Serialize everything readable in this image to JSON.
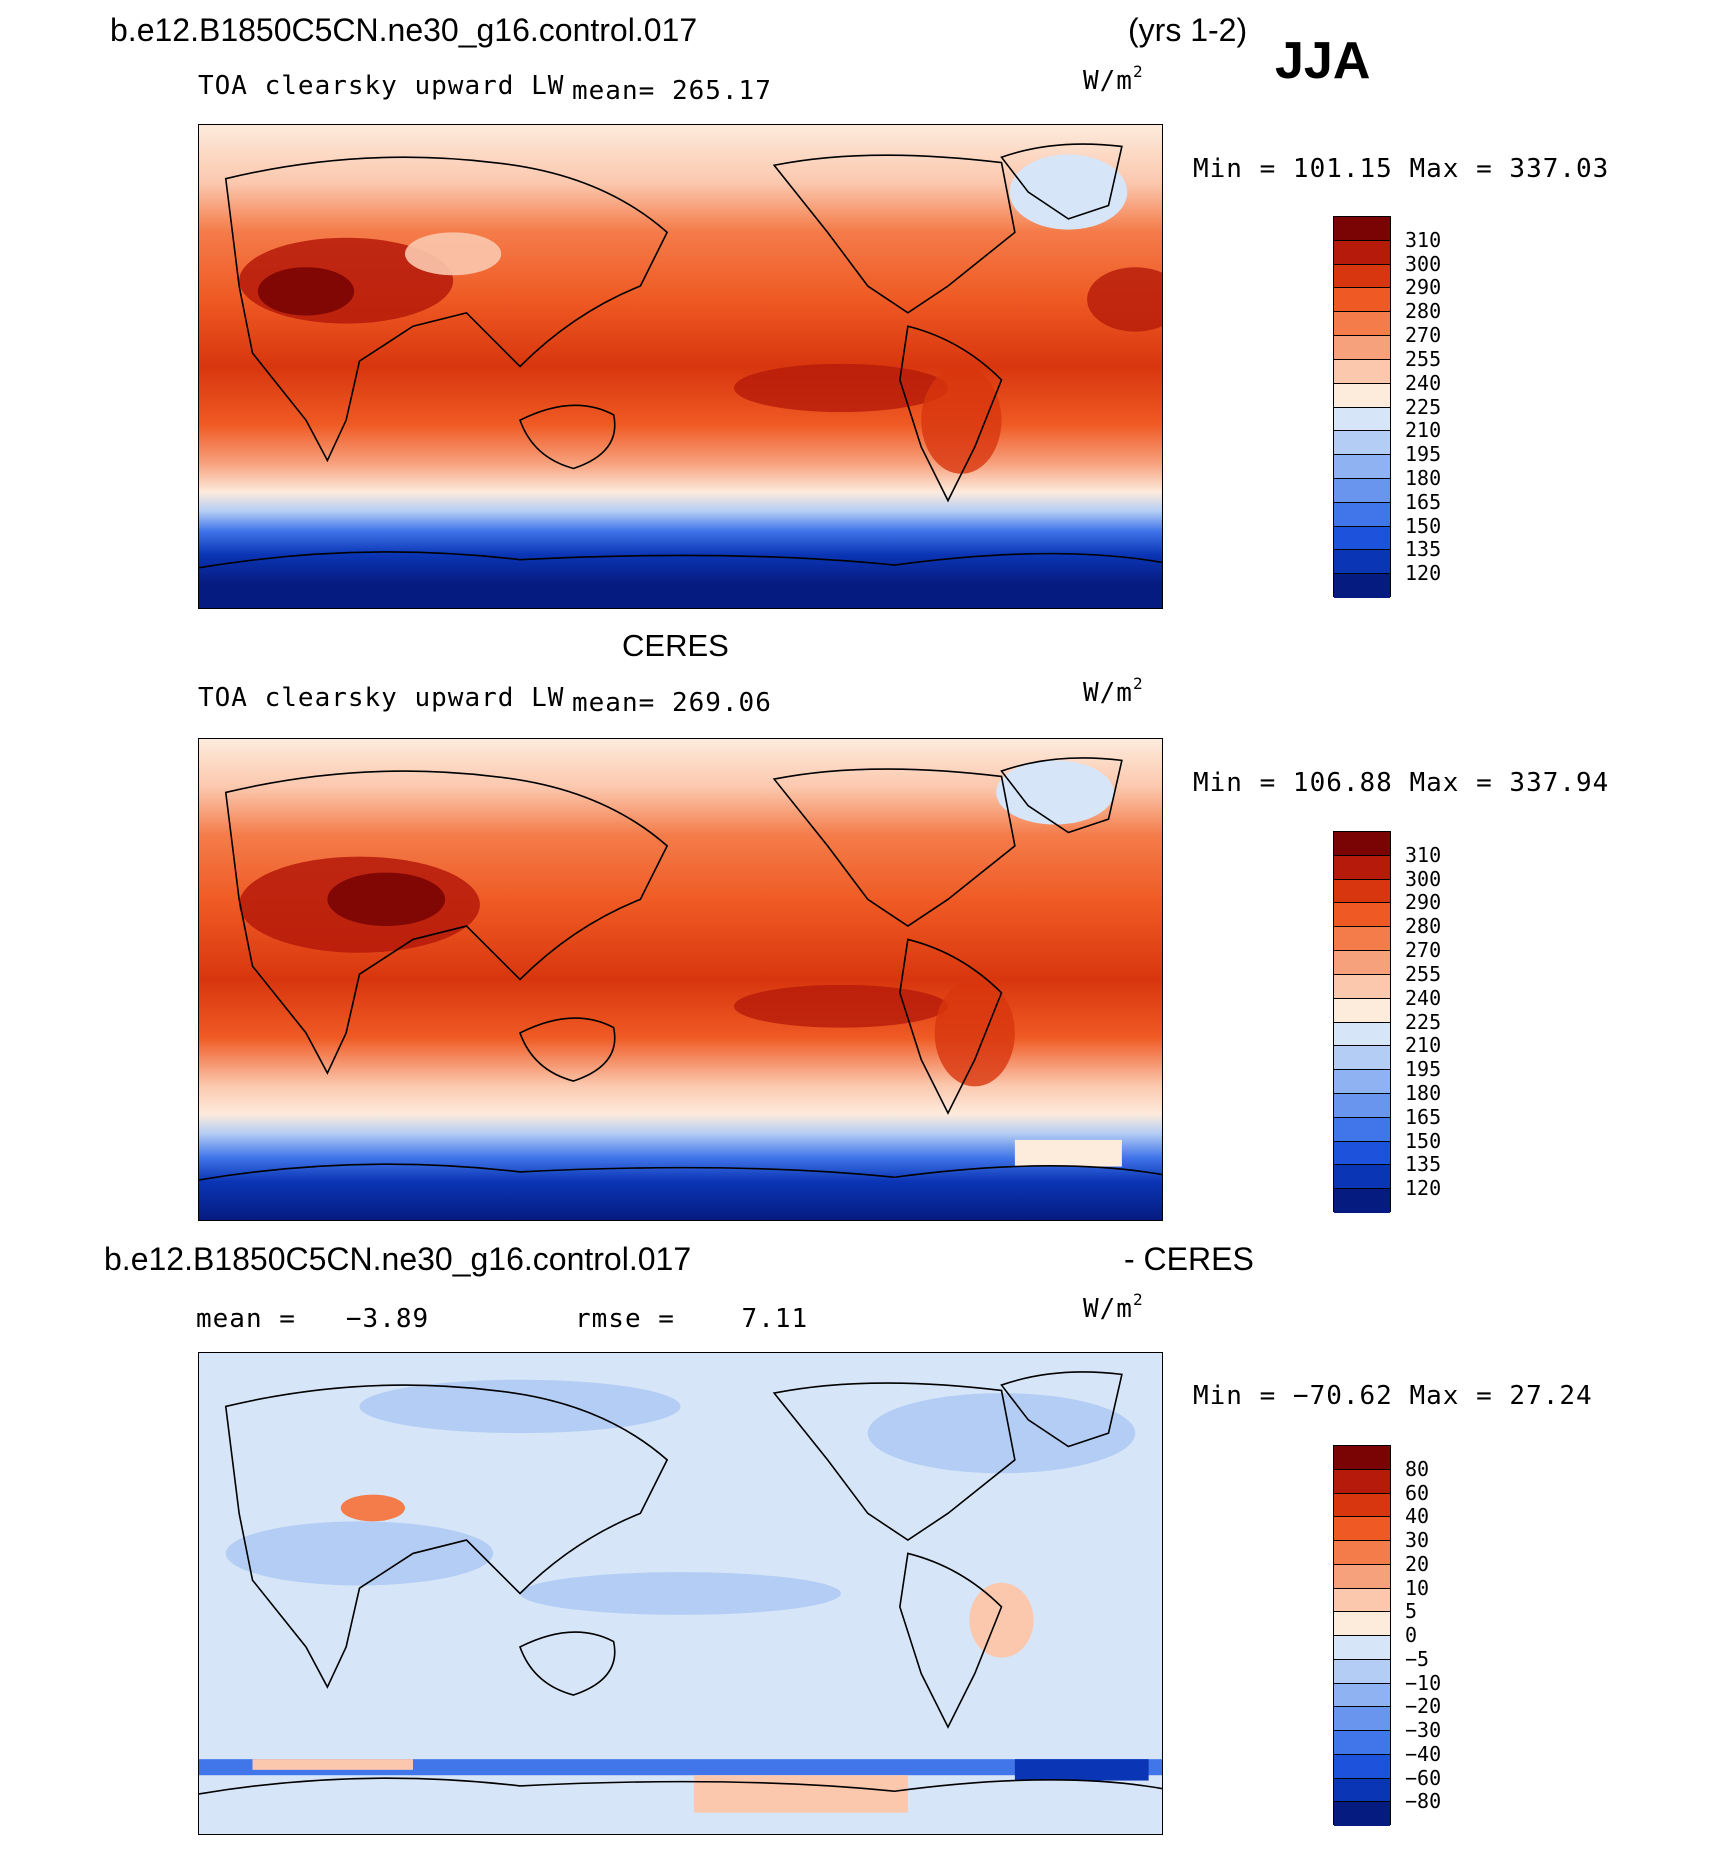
{
  "header": {
    "case_name": "b.e12.B1850C5CN.ne30_g16.control.017",
    "years": "(yrs 1-2)",
    "season": "JJA"
  },
  "panels": [
    {
      "id": "model",
      "title": "",
      "variable": "TOA clearsky upward LW",
      "mean_label": "mean=",
      "mean_value": "265.17",
      "units": "W/m",
      "units_exp": "2",
      "minmax": "Min = 101.15 Max = 337.03"
    },
    {
      "id": "obs",
      "title": "CERES",
      "variable": "TOA clearsky upward LW",
      "mean_label": "mean=",
      "mean_value": "269.06",
      "units": "W/m",
      "units_exp": "2",
      "minmax": "Min = 106.88 Max = 337.94"
    },
    {
      "id": "diff",
      "title_left": "b.e12.B1850C5CN.ne30_g16.control.017",
      "title_right": "- CERES",
      "mean_label": "mean =",
      "mean_value": "−3.89",
      "rmse_label": "rmse =",
      "rmse_value": "7.11",
      "units": "W/m",
      "units_exp": "2",
      "minmax": "Min = −70.62 Max =   27.24"
    }
  ],
  "colorbars": {
    "absolute": {
      "labels": [
        "310",
        "300",
        "290",
        "280",
        "270",
        "255",
        "240",
        "225",
        "210",
        "195",
        "180",
        "165",
        "150",
        "135",
        "120"
      ],
      "colors": [
        "#7a0403",
        "#b51a0a",
        "#d8360e",
        "#ef5a24",
        "#f47c4a",
        "#f7a07c",
        "#fbc8ae",
        "#fdebdc",
        "#d6e6f8",
        "#b4cdf4",
        "#8fb2f2",
        "#6a95ef",
        "#4175ea",
        "#1d52dd",
        "#0a35b5",
        "#061b80"
      ]
    },
    "difference": {
      "labels": [
        "80",
        "60",
        "40",
        "30",
        "20",
        "10",
        "5",
        "0",
        "−5",
        "−10",
        "−20",
        "−30",
        "−40",
        "−60",
        "−80"
      ],
      "colors": [
        "#7a0403",
        "#b51a0a",
        "#d8360e",
        "#ef5a24",
        "#f47c4a",
        "#f7a07c",
        "#fbc8ae",
        "#fdebdc",
        "#d6e6f8",
        "#b4cdf4",
        "#8fb2f2",
        "#6a95ef",
        "#4175ea",
        "#1d52dd",
        "#0a35b5",
        "#061b80"
      ]
    }
  }
}
